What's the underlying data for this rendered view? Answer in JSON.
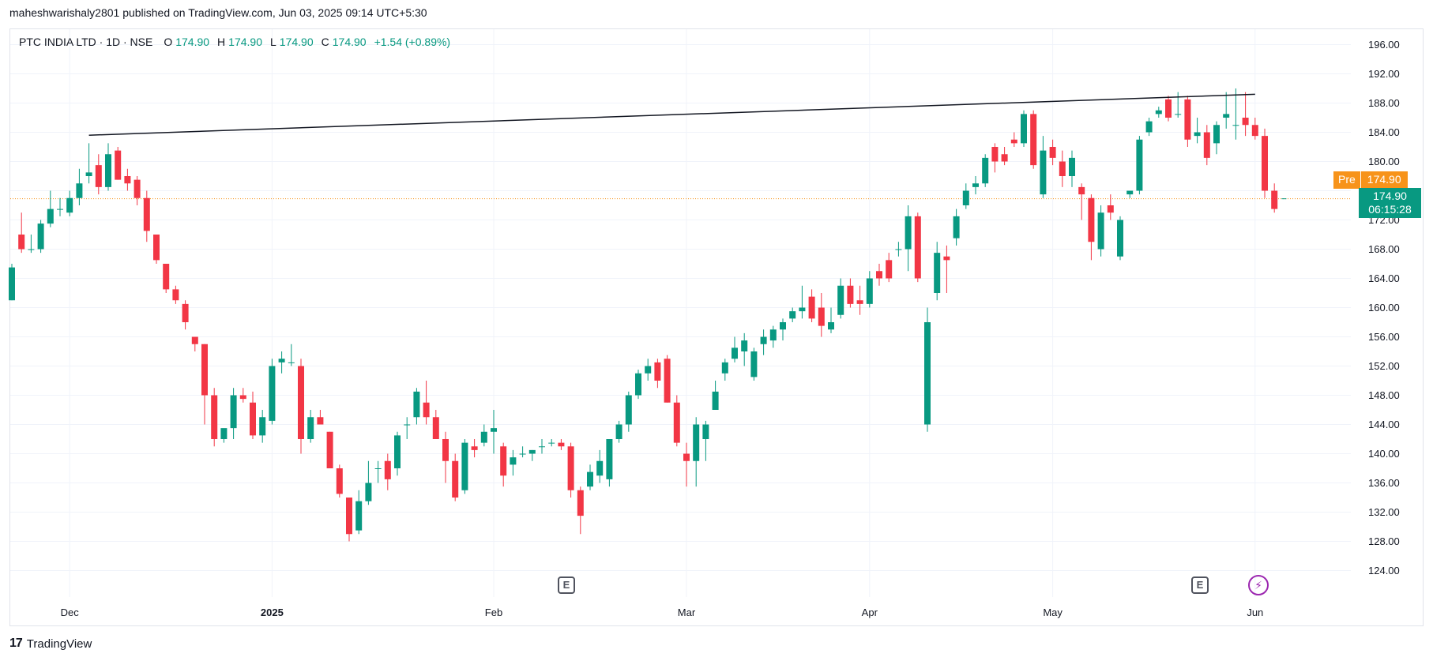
{
  "header": {
    "publisher_line": "maheshwarishaly2801 published on TradingView.com, Jun 03, 2025 09:14 UTC+5:30"
  },
  "legend": {
    "symbol": "PTC INDIA LTD · 1D · NSE",
    "open_label": "O",
    "open": "174.90",
    "high_label": "H",
    "high": "174.90",
    "low_label": "L",
    "low": "174.90",
    "close_label": "C",
    "close": "174.90",
    "change": "+1.54 (+0.89%)"
  },
  "badges": {
    "pre_tag": "Pre",
    "pre_value": "174.90",
    "last_price": "174.90",
    "countdown": "06:15:28"
  },
  "events": {
    "earnings_1": "E",
    "earnings_2": "E",
    "bolt": "⚡"
  },
  "footer": {
    "brand": "TradingView",
    "logo": "17"
  },
  "colors": {
    "up": "#089981",
    "down": "#f23645",
    "trendline": "#131722",
    "price_line": "#f7931a"
  },
  "chart_data": {
    "type": "candlestick",
    "symbol": "PTC INDIA LTD",
    "interval": "1D",
    "exchange": "NSE",
    "y_axis_ticks": [
      "196.00",
      "192.00",
      "188.00",
      "184.00",
      "180.00",
      "176.00",
      "172.00",
      "168.00",
      "164.00",
      "160.00",
      "156.00",
      "152.00",
      "148.00",
      "144.00",
      "140.00",
      "136.00",
      "132.00",
      "128.00",
      "124.00"
    ],
    "y_range": [
      122,
      198
    ],
    "x_axis_labels": [
      {
        "label": "Dec",
        "bold": false,
        "index": 6
      },
      {
        "label": "2025",
        "bold": true,
        "index": 27
      },
      {
        "label": "Feb",
        "bold": false,
        "index": 50
      },
      {
        "label": "Mar",
        "bold": false,
        "index": 70
      },
      {
        "label": "Apr",
        "bold": false,
        "index": 89
      },
      {
        "label": "May",
        "bold": false,
        "index": 108
      },
      {
        "label": "Jun",
        "bold": false,
        "index": 129
      }
    ],
    "trendline": {
      "from": {
        "index": 8,
        "price": 183.6
      },
      "to": {
        "index": 129,
        "price": 189.2
      }
    },
    "current_price": 174.9,
    "candles": [
      {
        "o": 161,
        "h": 166,
        "l": 161,
        "c": 165.5
      },
      {
        "o": 170,
        "h": 173,
        "l": 167.5,
        "c": 168
      },
      {
        "o": 168,
        "h": 170,
        "l": 167.5,
        "c": 168
      },
      {
        "o": 168,
        "h": 172,
        "l": 167.5,
        "c": 171.5
      },
      {
        "o": 171.5,
        "h": 176,
        "l": 171,
        "c": 173.5
      },
      {
        "o": 173.5,
        "h": 175,
        "l": 172.5,
        "c": 173.5
      },
      {
        "o": 173,
        "h": 176,
        "l": 172.5,
        "c": 175
      },
      {
        "o": 175,
        "h": 179,
        "l": 174,
        "c": 177
      },
      {
        "o": 178,
        "h": 182.5,
        "l": 177,
        "c": 178.5
      },
      {
        "o": 179.5,
        "h": 181,
        "l": 175.5,
        "c": 176.5
      },
      {
        "o": 176.5,
        "h": 182.5,
        "l": 176,
        "c": 181
      },
      {
        "o": 181.5,
        "h": 182,
        "l": 177.5,
        "c": 177.5
      },
      {
        "o": 178,
        "h": 179,
        "l": 176,
        "c": 177
      },
      {
        "o": 177.5,
        "h": 178,
        "l": 174,
        "c": 175
      },
      {
        "o": 175,
        "h": 176,
        "l": 169,
        "c": 170.5
      },
      {
        "o": 170,
        "h": 170,
        "l": 166,
        "c": 166.5
      },
      {
        "o": 166,
        "h": 166,
        "l": 162,
        "c": 162.5
      },
      {
        "o": 162.5,
        "h": 163,
        "l": 160.5,
        "c": 161
      },
      {
        "o": 160.5,
        "h": 161,
        "l": 157,
        "c": 158
      },
      {
        "o": 156,
        "h": 156,
        "l": 154,
        "c": 155
      },
      {
        "o": 155,
        "h": 155,
        "l": 144,
        "c": 148
      },
      {
        "o": 148,
        "h": 149,
        "l": 141,
        "c": 142
      },
      {
        "o": 142,
        "h": 143,
        "l": 141.5,
        "c": 143.5
      },
      {
        "o": 143.5,
        "h": 149,
        "l": 142,
        "c": 148
      },
      {
        "o": 148,
        "h": 149,
        "l": 147,
        "c": 147.5
      },
      {
        "o": 147,
        "h": 148.5,
        "l": 142,
        "c": 142.5
      },
      {
        "o": 142.5,
        "h": 146,
        "l": 141.5,
        "c": 145
      },
      {
        "o": 144.5,
        "h": 153,
        "l": 144,
        "c": 152
      },
      {
        "o": 152.5,
        "h": 154,
        "l": 151,
        "c": 153
      },
      {
        "o": 152.5,
        "h": 155,
        "l": 152,
        "c": 152.5
      },
      {
        "o": 152,
        "h": 153,
        "l": 140,
        "c": 142
      },
      {
        "o": 142,
        "h": 146,
        "l": 141.5,
        "c": 145
      },
      {
        "o": 145,
        "h": 146,
        "l": 144,
        "c": 144
      },
      {
        "o": 143,
        "h": 143,
        "l": 138,
        "c": 138
      },
      {
        "o": 138,
        "h": 138.5,
        "l": 134,
        "c": 134.5
      },
      {
        "o": 134,
        "h": 134,
        "l": 128,
        "c": 129
      },
      {
        "o": 129.5,
        "h": 135,
        "l": 129,
        "c": 133.5
      },
      {
        "o": 133.5,
        "h": 139,
        "l": 133,
        "c": 136
      },
      {
        "o": 138,
        "h": 139,
        "l": 136,
        "c": 138
      },
      {
        "o": 139,
        "h": 140,
        "l": 135,
        "c": 136.5
      },
      {
        "o": 138,
        "h": 143,
        "l": 137,
        "c": 142.5
      },
      {
        "o": 144,
        "h": 145,
        "l": 142,
        "c": 144
      },
      {
        "o": 145,
        "h": 149,
        "l": 144,
        "c": 148.5
      },
      {
        "o": 147,
        "h": 150,
        "l": 144,
        "c": 145
      },
      {
        "o": 145,
        "h": 146,
        "l": 142,
        "c": 142
      },
      {
        "o": 142,
        "h": 143,
        "l": 136,
        "c": 139
      },
      {
        "o": 139,
        "h": 140,
        "l": 133.5,
        "c": 134
      },
      {
        "o": 135,
        "h": 142,
        "l": 134.5,
        "c": 141.5
      },
      {
        "o": 141,
        "h": 142,
        "l": 139.5,
        "c": 140.5
      },
      {
        "o": 141.5,
        "h": 144,
        "l": 141,
        "c": 143
      },
      {
        "o": 143,
        "h": 146,
        "l": 140,
        "c": 143.5
      },
      {
        "o": 141,
        "h": 141.5,
        "l": 135.5,
        "c": 137
      },
      {
        "o": 138.5,
        "h": 140.5,
        "l": 137,
        "c": 139.5
      },
      {
        "o": 140,
        "h": 141,
        "l": 139.5,
        "c": 140
      },
      {
        "o": 140,
        "h": 140.5,
        "l": 139,
        "c": 140.5
      },
      {
        "o": 141,
        "h": 142,
        "l": 140,
        "c": 141
      },
      {
        "o": 141.5,
        "h": 142,
        "l": 141,
        "c": 141.5
      },
      {
        "o": 141.5,
        "h": 142,
        "l": 140.5,
        "c": 141
      },
      {
        "o": 141,
        "h": 141.5,
        "l": 134,
        "c": 135
      },
      {
        "o": 135,
        "h": 135.5,
        "l": 129,
        "c": 131.5
      },
      {
        "o": 135.5,
        "h": 138.5,
        "l": 135,
        "c": 137.5
      },
      {
        "o": 137,
        "h": 140.5,
        "l": 136,
        "c": 139
      },
      {
        "o": 136.5,
        "h": 142,
        "l": 135.5,
        "c": 142
      },
      {
        "o": 142,
        "h": 144.5,
        "l": 141.5,
        "c": 144
      },
      {
        "o": 144,
        "h": 148.5,
        "l": 143,
        "c": 148
      },
      {
        "o": 148,
        "h": 151.5,
        "l": 147.5,
        "c": 151
      },
      {
        "o": 151,
        "h": 153,
        "l": 150,
        "c": 152
      },
      {
        "o": 152.5,
        "h": 153,
        "l": 149,
        "c": 150
      },
      {
        "o": 153,
        "h": 153.5,
        "l": 147,
        "c": 147
      },
      {
        "o": 147,
        "h": 148,
        "l": 141,
        "c": 141.5
      },
      {
        "o": 140,
        "h": 141.5,
        "l": 135.5,
        "c": 139
      },
      {
        "o": 139,
        "h": 145,
        "l": 135.5,
        "c": 144
      },
      {
        "o": 142,
        "h": 144.5,
        "l": 139,
        "c": 144
      },
      {
        "o": 146,
        "h": 150,
        "l": 146,
        "c": 148.5
      },
      {
        "o": 151,
        "h": 153,
        "l": 150,
        "c": 152.5
      },
      {
        "o": 153,
        "h": 156,
        "l": 152.5,
        "c": 154.5
      },
      {
        "o": 154,
        "h": 156.5,
        "l": 152,
        "c": 155.5
      },
      {
        "o": 150.5,
        "h": 154.5,
        "l": 150,
        "c": 154
      },
      {
        "o": 155,
        "h": 157,
        "l": 153.5,
        "c": 156
      },
      {
        "o": 155.5,
        "h": 157.5,
        "l": 154.5,
        "c": 157
      },
      {
        "o": 157,
        "h": 158.5,
        "l": 155.5,
        "c": 158
      },
      {
        "o": 158.5,
        "h": 160,
        "l": 158,
        "c": 159.5
      },
      {
        "o": 159.5,
        "h": 163,
        "l": 158.5,
        "c": 160
      },
      {
        "o": 161.5,
        "h": 162.5,
        "l": 158,
        "c": 158.5
      },
      {
        "o": 160,
        "h": 162,
        "l": 156,
        "c": 157.5
      },
      {
        "o": 157,
        "h": 160,
        "l": 156.5,
        "c": 158
      },
      {
        "o": 159,
        "h": 164,
        "l": 158.5,
        "c": 163
      },
      {
        "o": 163,
        "h": 164,
        "l": 160,
        "c": 160.5
      },
      {
        "o": 161,
        "h": 163,
        "l": 159,
        "c": 160.5
      },
      {
        "o": 160.5,
        "h": 165,
        "l": 160,
        "c": 164
      },
      {
        "o": 165,
        "h": 166,
        "l": 163,
        "c": 164
      },
      {
        "o": 166.5,
        "h": 167.5,
        "l": 163.5,
        "c": 164
      },
      {
        "o": 168,
        "h": 169,
        "l": 167,
        "c": 168
      },
      {
        "o": 168,
        "h": 174,
        "l": 165,
        "c": 172.5
      },
      {
        "o": 172.5,
        "h": 173,
        "l": 163.5,
        "c": 164
      },
      {
        "o": 144,
        "h": 160,
        "l": 143,
        "c": 158
      },
      {
        "o": 162,
        "h": 169,
        "l": 161,
        "c": 167.5
      },
      {
        "o": 167,
        "h": 168.5,
        "l": 162,
        "c": 166.5
      },
      {
        "o": 169.5,
        "h": 173.5,
        "l": 168.5,
        "c": 172.5
      },
      {
        "o": 174,
        "h": 177,
        "l": 173.5,
        "c": 176
      },
      {
        "o": 176.5,
        "h": 178,
        "l": 175.5,
        "c": 177
      },
      {
        "o": 177,
        "h": 181,
        "l": 176.5,
        "c": 180.5
      },
      {
        "o": 182,
        "h": 182.5,
        "l": 178.5,
        "c": 180
      },
      {
        "o": 181,
        "h": 182,
        "l": 179.5,
        "c": 180
      },
      {
        "o": 183,
        "h": 184,
        "l": 182,
        "c": 182.5
      },
      {
        "o": 182.5,
        "h": 187,
        "l": 182,
        "c": 186.5
      },
      {
        "o": 186.5,
        "h": 187,
        "l": 179,
        "c": 179.5
      },
      {
        "o": 175.5,
        "h": 183.5,
        "l": 175,
        "c": 181.5
      },
      {
        "o": 182,
        "h": 183,
        "l": 179.5,
        "c": 180.5
      },
      {
        "o": 180,
        "h": 181.5,
        "l": 176.5,
        "c": 178
      },
      {
        "o": 178,
        "h": 181.5,
        "l": 176.5,
        "c": 180.5
      },
      {
        "o": 176.5,
        "h": 177,
        "l": 172,
        "c": 175.5
      },
      {
        "o": 175,
        "h": 175.5,
        "l": 166.5,
        "c": 169
      },
      {
        "o": 168,
        "h": 174,
        "l": 167,
        "c": 173
      },
      {
        "o": 174,
        "h": 175.5,
        "l": 172,
        "c": 173
      },
      {
        "o": 167,
        "h": 172.5,
        "l": 166.5,
        "c": 172
      },
      {
        "o": 175.5,
        "h": 176,
        "l": 175,
        "c": 176
      },
      {
        "o": 176,
        "h": 183.5,
        "l": 175.5,
        "c": 183
      },
      {
        "o": 184,
        "h": 186,
        "l": 183.5,
        "c": 185.5
      },
      {
        "o": 186.5,
        "h": 187.5,
        "l": 186,
        "c": 187
      },
      {
        "o": 188.5,
        "h": 189,
        "l": 185.5,
        "c": 186
      },
      {
        "o": 186.5,
        "h": 189.5,
        "l": 186,
        "c": 186.5
      },
      {
        "o": 188.5,
        "h": 189,
        "l": 182,
        "c": 183
      },
      {
        "o": 183.5,
        "h": 186,
        "l": 182.5,
        "c": 184
      },
      {
        "o": 184,
        "h": 185,
        "l": 179.5,
        "c": 180.5
      },
      {
        "o": 182.5,
        "h": 185.5,
        "l": 181,
        "c": 185
      },
      {
        "o": 186,
        "h": 189.5,
        "l": 184.5,
        "c": 186.5
      },
      {
        "o": 185,
        "h": 190,
        "l": 183,
        "c": 185
      },
      {
        "o": 186,
        "h": 189.5,
        "l": 183.5,
        "c": 185
      },
      {
        "o": 185,
        "h": 186,
        "l": 183,
        "c": 183.5
      },
      {
        "o": 183.5,
        "h": 184.5,
        "l": 175,
        "c": 176
      },
      {
        "o": 176,
        "h": 177,
        "l": 173,
        "c": 173.5
      }
    ]
  }
}
